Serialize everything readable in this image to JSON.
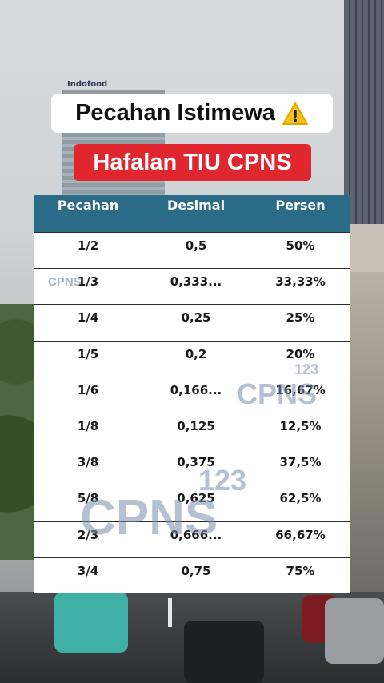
{
  "title": {
    "text": "Pecahan Istimewa",
    "icon": "warning-icon"
  },
  "subtitle": {
    "text": "Hafalan TIU CPNS",
    "background": "#e0262f"
  },
  "background_sign": "Indofood",
  "table": {
    "header_color": "#2a6b87",
    "headers": [
      "Pecahan",
      "Desimal",
      "Persen"
    ],
    "rows": [
      [
        "1/2",
        "0,5",
        "50%"
      ],
      [
        "1/3",
        "0,333...",
        "33,33%"
      ],
      [
        "1/4",
        "0,25",
        "25%"
      ],
      [
        "1/5",
        "0,2",
        "20%"
      ],
      [
        "1/6",
        "0,166...",
        "16,67%"
      ],
      [
        "1/8",
        "0,125",
        "12,5%"
      ],
      [
        "3/8",
        "0,375",
        "37,5%"
      ],
      [
        "5/8",
        "0,625",
        "62,5%"
      ],
      [
        "2/3",
        "0,666...",
        "66,67%"
      ],
      [
        "3/4",
        "0,75",
        "75%"
      ]
    ]
  },
  "watermarks": {
    "small": "CPNS",
    "medium": "CPNS",
    "medium_num": "123",
    "large": "CPNS",
    "large_num": "123"
  }
}
